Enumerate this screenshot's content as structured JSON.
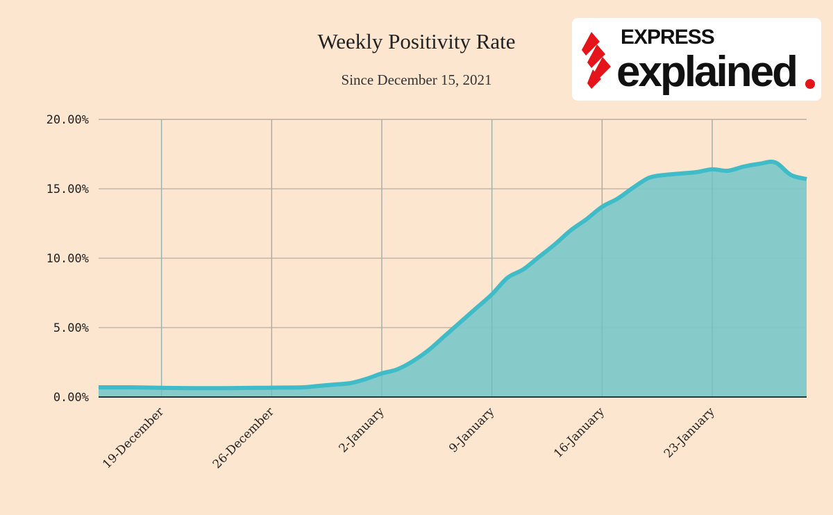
{
  "chart_data": {
    "type": "area",
    "title": "Weekly Positivity Rate",
    "subtitle": "Since December 15, 2021",
    "xlabel": "",
    "ylabel": "",
    "ylim": [
      0,
      20
    ],
    "yticks": [
      "0.00%",
      "5.00%",
      "10.00%",
      "15.00%",
      "20.00%"
    ],
    "ytick_values": [
      0,
      5,
      10,
      15,
      20
    ],
    "xticks": [
      "19-December",
      "26-December",
      "2-January",
      "9-January",
      "16-January",
      "23-January"
    ],
    "xtick_day_index": [
      4,
      11,
      18,
      25,
      32,
      39
    ],
    "grid": true,
    "x_start": "15-December-2021",
    "x_end": "29-January-2022",
    "series": [
      {
        "name": "Weekly Positivity Rate",
        "values": [
          0.7,
          0.7,
          0.7,
          0.68,
          0.66,
          0.65,
          0.64,
          0.64,
          0.64,
          0.65,
          0.66,
          0.67,
          0.68,
          0.7,
          0.8,
          0.9,
          1.0,
          1.3,
          1.7,
          2.0,
          2.6,
          3.4,
          4.4,
          5.4,
          6.4,
          7.4,
          8.6,
          9.2,
          10.1,
          11.0,
          12.0,
          12.8,
          13.7,
          14.3,
          15.1,
          15.8,
          16.0,
          16.1,
          16.2,
          16.4,
          16.3,
          16.6,
          16.8,
          16.9,
          16.0,
          15.7
        ],
        "line_color": "#3fbcc8",
        "fill_color": "#7fc9c8"
      }
    ]
  },
  "logo": {
    "line1": "EXPRESS",
    "line2": "explained"
  },
  "colors": {
    "background": "#fce6d0",
    "grid": "#c2b6a8",
    "accent_red": "#e5141b"
  }
}
